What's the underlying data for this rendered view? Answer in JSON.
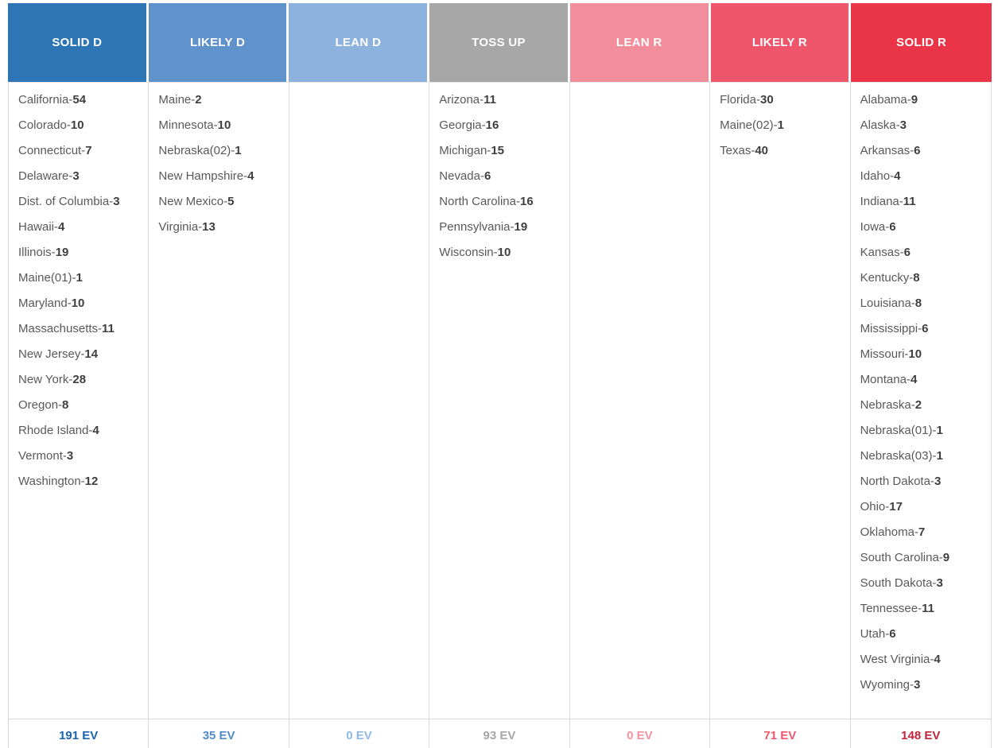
{
  "table": {
    "separator": "-",
    "columns": [
      {
        "id": "solid-d",
        "label": "SOLID D",
        "header_color": "#2e75b6",
        "total_color": "#1b63ac",
        "total": "191 EV",
        "states": [
          {
            "name": "California",
            "ev": "54"
          },
          {
            "name": "Colorado",
            "ev": "10"
          },
          {
            "name": "Connecticut",
            "ev": "7"
          },
          {
            "name": "Delaware",
            "ev": "3"
          },
          {
            "name": "Dist. of Columbia",
            "ev": "3"
          },
          {
            "name": "Hawaii",
            "ev": "4"
          },
          {
            "name": "Illinois",
            "ev": "19"
          },
          {
            "name": "Maine(01)",
            "ev": "1"
          },
          {
            "name": "Maryland",
            "ev": "10"
          },
          {
            "name": "Massachusetts",
            "ev": "11"
          },
          {
            "name": "New Jersey",
            "ev": "14"
          },
          {
            "name": "New York",
            "ev": "28"
          },
          {
            "name": "Oregon",
            "ev": "8"
          },
          {
            "name": "Rhode Island",
            "ev": "4"
          },
          {
            "name": "Vermont",
            "ev": "3"
          },
          {
            "name": "Washington",
            "ev": "12"
          }
        ]
      },
      {
        "id": "likely-d",
        "label": "LIKELY D",
        "header_color": "#6093cb",
        "total_color": "#4e8cc9",
        "total": "35 EV",
        "states": [
          {
            "name": "Maine",
            "ev": "2"
          },
          {
            "name": "Minnesota",
            "ev": "10"
          },
          {
            "name": "Nebraska(02)",
            "ev": "1"
          },
          {
            "name": "New Hampshire",
            "ev": "4"
          },
          {
            "name": "New Mexico",
            "ev": "5"
          },
          {
            "name": "Virginia",
            "ev": "13"
          }
        ]
      },
      {
        "id": "lean-d",
        "label": "LEAN D",
        "header_color": "#8cb2dd",
        "total_color": "#8fb9e5",
        "total": "0 EV",
        "states": []
      },
      {
        "id": "toss-up",
        "label": "TOSS UP",
        "header_color": "#a7a7a7",
        "total_color": "#a7a7a7",
        "total": "93 EV",
        "states": [
          {
            "name": "Arizona",
            "ev": "11"
          },
          {
            "name": "Georgia",
            "ev": "16"
          },
          {
            "name": "Michigan",
            "ev": "15"
          },
          {
            "name": "Nevada",
            "ev": "6"
          },
          {
            "name": "North Carolina",
            "ev": "16"
          },
          {
            "name": "Pennsylvania",
            "ev": "19"
          },
          {
            "name": "Wisconsin",
            "ev": "10"
          }
        ]
      },
      {
        "id": "lean-r",
        "label": "LEAN R",
        "header_color": "#f28e9b",
        "total_color": "#f4919c",
        "total": "0 EV",
        "states": []
      },
      {
        "id": "likely-r",
        "label": "LIKELY R",
        "header_color": "#f0566b",
        "total_color": "#f0566b",
        "total": "71 EV",
        "states": [
          {
            "name": "Florida",
            "ev": "30"
          },
          {
            "name": "Maine(02)",
            "ev": "1"
          },
          {
            "name": "Texas",
            "ev": "40"
          }
        ]
      },
      {
        "id": "solid-r",
        "label": "SOLID R",
        "header_color": "#ea3448",
        "total_color": "#c22339",
        "total": "148 EV",
        "states": [
          {
            "name": "Alabama",
            "ev": "9"
          },
          {
            "name": "Alaska",
            "ev": "3"
          },
          {
            "name": "Arkansas",
            "ev": "6"
          },
          {
            "name": "Idaho",
            "ev": "4"
          },
          {
            "name": "Indiana",
            "ev": "11"
          },
          {
            "name": "Iowa",
            "ev": "6"
          },
          {
            "name": "Kansas",
            "ev": "6"
          },
          {
            "name": "Kentucky",
            "ev": "8"
          },
          {
            "name": "Louisiana",
            "ev": "8"
          },
          {
            "name": "Mississippi",
            "ev": "6"
          },
          {
            "name": "Missouri",
            "ev": "10"
          },
          {
            "name": "Montana",
            "ev": "4"
          },
          {
            "name": "Nebraska",
            "ev": "2"
          },
          {
            "name": "Nebraska(01)",
            "ev": "1"
          },
          {
            "name": "Nebraska(03)",
            "ev": "1"
          },
          {
            "name": "North Dakota",
            "ev": "3"
          },
          {
            "name": "Ohio",
            "ev": "17"
          },
          {
            "name": "Oklahoma",
            "ev": "7"
          },
          {
            "name": "South Carolina",
            "ev": "9"
          },
          {
            "name": "South Dakota",
            "ev": "3"
          },
          {
            "name": "Tennessee",
            "ev": "11"
          },
          {
            "name": "Utah",
            "ev": "6"
          },
          {
            "name": "West Virginia",
            "ev": "4"
          },
          {
            "name": "Wyoming",
            "ev": "3"
          }
        ]
      }
    ]
  }
}
